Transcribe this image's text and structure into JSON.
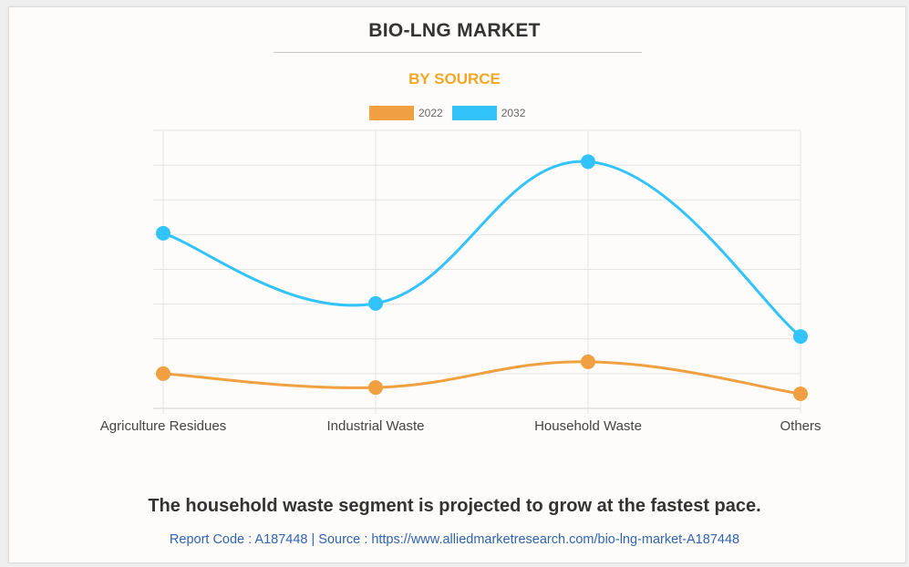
{
  "title": "BIO-LNG MARKET",
  "subtitle": "BY SOURCE",
  "colors": {
    "subtitle": "#f5a623",
    "series_2022": "#f0a040",
    "series_2032": "#33c3fb",
    "grid": "#e3e3e3",
    "axis_text": "#444444",
    "source_link": "#2f64b0"
  },
  "legend": [
    {
      "label": "2022",
      "color": "#f0a040"
    },
    {
      "label": "2032",
      "color": "#33c3fb"
    }
  ],
  "chart_data": {
    "type": "line",
    "title": "BIO-LNG MARKET",
    "subtitle": "BY SOURCE",
    "xlabel": "",
    "ylabel": "",
    "y_units": "relative (no y-axis values shown; units = gridline steps)",
    "ylim": [
      0,
      8
    ],
    "grid": true,
    "smooth": true,
    "legend_position": "top-center",
    "categories": [
      "Agriculture Residues",
      "Industrial Waste",
      "Household Waste",
      "Others"
    ],
    "series": [
      {
        "name": "2022",
        "color": "#f0a040",
        "values": [
          1.0,
          0.6,
          1.34,
          0.42
        ]
      },
      {
        "name": "2032",
        "color": "#33c3fb",
        "values": [
          5.04,
          3.02,
          7.1,
          2.07
        ]
      }
    ]
  },
  "footer": {
    "note": "The household waste segment is projected to grow at the fastest pace.",
    "source": "Report Code : A187448  |  Source : https://www.alliedmarketresearch.com/bio-lng-market-A187448"
  }
}
